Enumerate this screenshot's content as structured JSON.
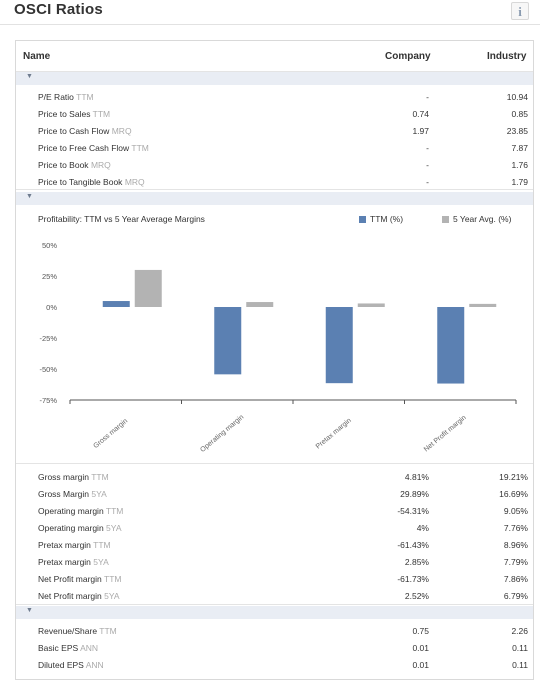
{
  "app": {
    "title": "OSCI Ratios",
    "info_icon": "i"
  },
  "columns": {
    "name": "Name",
    "company": "Company",
    "industry": "Industry"
  },
  "valuation_rows": [
    {
      "label": "P/E Ratio",
      "qualifier": "TTM",
      "company": "-",
      "industry": "10.94"
    },
    {
      "label": "Price to Sales",
      "qualifier": "TTM",
      "company": "0.74",
      "industry": "0.85"
    },
    {
      "label": "Price to Cash Flow",
      "qualifier": "MRQ",
      "company": "1.97",
      "industry": "23.85"
    },
    {
      "label": "Price to Free Cash Flow",
      "qualifier": "TTM",
      "company": "-",
      "industry": "7.87"
    },
    {
      "label": "Price to Book",
      "qualifier": "MRQ",
      "company": "-",
      "industry": "1.76"
    },
    {
      "label": "Price to Tangible Book",
      "qualifier": "MRQ",
      "company": "-",
      "industry": "1.79"
    }
  ],
  "chart_title": "Profitability: TTM vs 5 Year Average Margins",
  "chart_data": {
    "type": "bar",
    "categories": [
      "Gross margin",
      "Operating margin",
      "Pretax margin",
      "Net Profit margin"
    ],
    "series": [
      {
        "name": "TTM (%)",
        "values": [
          4.81,
          -54.31,
          -61.43,
          -61.73
        ],
        "color": "#5b80b2"
      },
      {
        "name": "5 Year Avg. (%)",
        "values": [
          29.89,
          4,
          2.85,
          2.52
        ],
        "color": "#b3b3b3"
      }
    ],
    "y_ticks": [
      "50%",
      "25%",
      "0%",
      "-25%",
      "-50%",
      "-75%"
    ],
    "ylim": [
      -75,
      50
    ],
    "legend": "top-right"
  },
  "margin_rows": [
    {
      "label": "Gross margin",
      "qualifier": "TTM",
      "company": "4.81%",
      "industry": "19.21%"
    },
    {
      "label": "Gross Margin",
      "qualifier": "5YA",
      "company": "29.89%",
      "industry": "16.69%"
    },
    {
      "label": "Operating margin",
      "qualifier": "TTM",
      "company": "-54.31%",
      "industry": "9.05%"
    },
    {
      "label": "Operating margin",
      "qualifier": "5YA",
      "company": "4%",
      "industry": "7.76%"
    },
    {
      "label": "Pretax margin",
      "qualifier": "TTM",
      "company": "-61.43%",
      "industry": "8.96%"
    },
    {
      "label": "Pretax margin",
      "qualifier": "5YA",
      "company": "2.85%",
      "industry": "7.79%"
    },
    {
      "label": "Net Profit margin",
      "qualifier": "TTM",
      "company": "-61.73%",
      "industry": "7.86%"
    },
    {
      "label": "Net Profit margin",
      "qualifier": "5YA",
      "company": "2.52%",
      "industry": "6.79%"
    }
  ],
  "per_share_rows": [
    {
      "label": "Revenue/Share",
      "qualifier": "TTM",
      "company": "0.75",
      "industry": "2.26"
    },
    {
      "label": "Basic EPS",
      "qualifier": "ANN",
      "company": "0.01",
      "industry": "0.11"
    },
    {
      "label": "Diluted EPS",
      "qualifier": "ANN",
      "company": "0.01",
      "industry": "0.11"
    }
  ],
  "collapse_icon": "chevron-down"
}
